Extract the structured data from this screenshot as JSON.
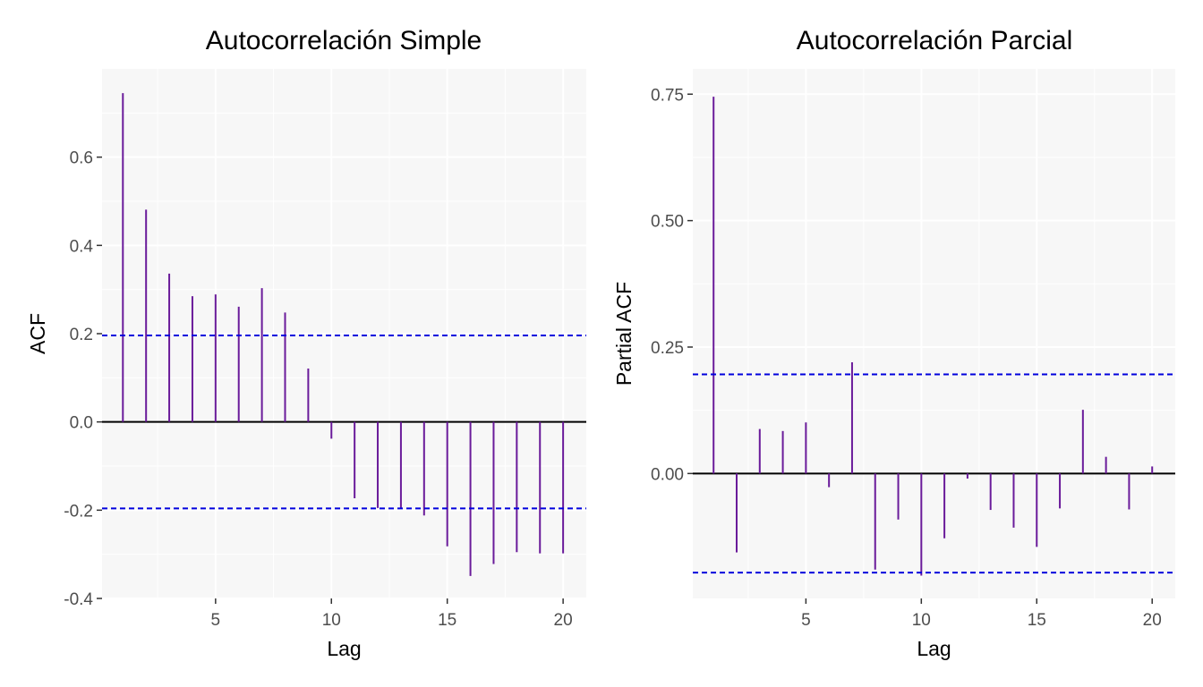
{
  "chart_data": [
    {
      "type": "bar",
      "title": "Autocorrelación Simple",
      "xlabel": "Lag",
      "ylabel": "ACF",
      "xlim": [
        0.1,
        21
      ],
      "ylim": [
        -0.4,
        0.8
      ],
      "xticks": [
        5,
        10,
        15,
        20
      ],
      "xtick_labels": [
        "5",
        "10",
        "15",
        "20"
      ],
      "yticks": [
        -0.4,
        -0.2,
        0,
        0.2,
        0.4,
        0.6
      ],
      "ytick_labels": [
        "-0.4",
        "-0.2",
        "0.0",
        "0.2",
        "0.4",
        "0.6"
      ],
      "grid": true,
      "lags": [
        1,
        2,
        3,
        4,
        5,
        6,
        7,
        8,
        9,
        10,
        11,
        12,
        13,
        14,
        15,
        16,
        17,
        18,
        19,
        20
      ],
      "values": [
        0.745,
        0.481,
        0.336,
        0.285,
        0.289,
        0.261,
        0.303,
        0.248,
        0.121,
        -0.038,
        -0.173,
        -0.195,
        -0.196,
        -0.212,
        -0.282,
        -0.349,
        -0.322,
        -0.295,
        -0.298,
        -0.298
      ],
      "confidence_bound": 0.196,
      "colors": {
        "bar": "#6a1b9a",
        "ci": "#0000dd",
        "panel": "#f7f7f7",
        "grid": "#ffffff",
        "zero": "#000000"
      }
    },
    {
      "type": "bar",
      "title": "Autocorrelación Parcial",
      "xlabel": "Lag",
      "ylabel": "Partial ACF",
      "xlim": [
        0.1,
        21
      ],
      "ylim": [
        -0.247,
        0.8
      ],
      "xticks": [
        5,
        10,
        15,
        20
      ],
      "xtick_labels": [
        "5",
        "10",
        "15",
        "20"
      ],
      "yticks": [
        0,
        0.25,
        0.5,
        0.75
      ],
      "ytick_labels": [
        "0.00",
        "0.25",
        "0.50",
        "0.75"
      ],
      "grid": true,
      "lags": [
        1,
        2,
        3,
        4,
        5,
        6,
        7,
        8,
        9,
        10,
        11,
        12,
        13,
        14,
        15,
        16,
        17,
        18,
        19,
        20
      ],
      "values": [
        0.745,
        -0.156,
        0.088,
        0.084,
        0.101,
        -0.027,
        0.22,
        -0.19,
        -0.091,
        -0.202,
        -0.128,
        -0.01,
        -0.072,
        -0.107,
        -0.145,
        -0.069,
        0.126,
        0.033,
        -0.071,
        0.014
      ],
      "confidence_bound": 0.196,
      "colors": {
        "bar": "#6a1b9a",
        "ci": "#0000dd",
        "panel": "#f7f7f7",
        "grid": "#ffffff",
        "zero": "#000000"
      }
    }
  ]
}
